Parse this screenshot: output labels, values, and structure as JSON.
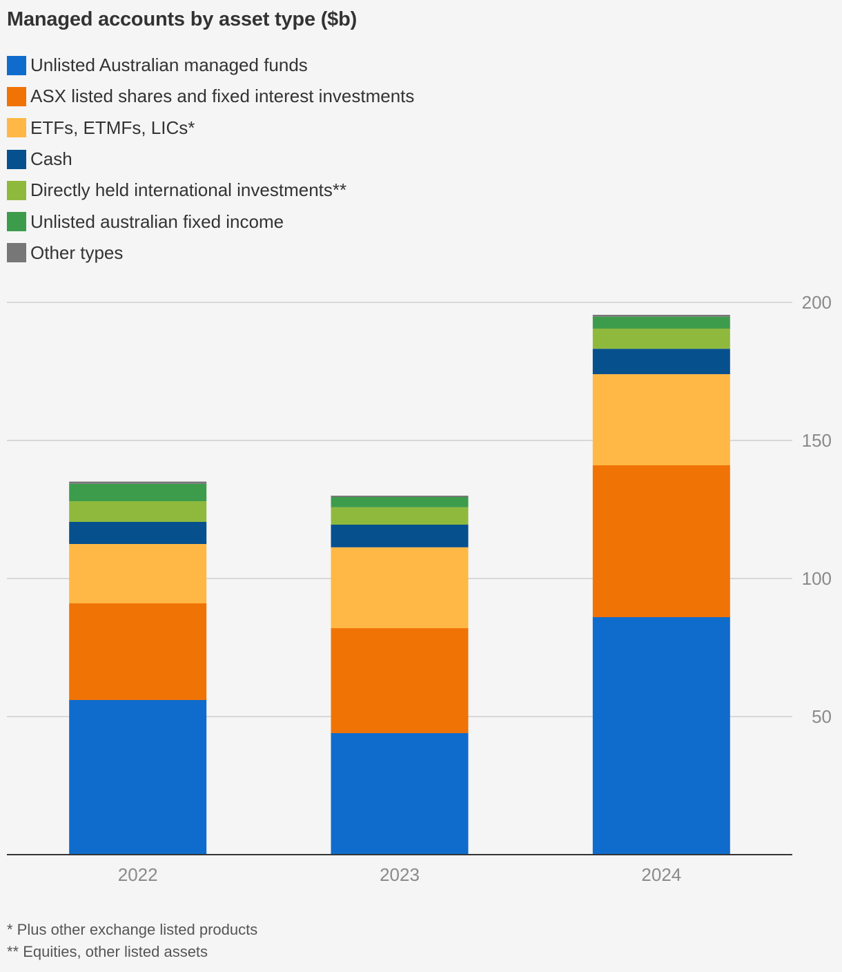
{
  "chart_data": {
    "type": "bar",
    "stacked": true,
    "title": "Managed accounts by asset type ($b)",
    "categories": [
      "2022",
      "2023",
      "2024"
    ],
    "series": [
      {
        "name": "Unlisted Australian managed funds",
        "color": "#106ccc",
        "values": [
          56,
          44,
          86
        ]
      },
      {
        "name": "ASX listed shares and fixed interest investments",
        "color": "#f07306",
        "values": [
          35,
          38,
          55
        ]
      },
      {
        "name": "ETFs, ETMFs, LICs*",
        "color": "#ffb845",
        "values": [
          21.5,
          29.3,
          33
        ]
      },
      {
        "name": "Cash",
        "color": "#06508e",
        "values": [
          8,
          8.2,
          9.2
        ]
      },
      {
        "name": "Directly held international investments**",
        "color": "#8fb93d",
        "values": [
          7.5,
          6.3,
          7.3
        ]
      },
      {
        "name": "Unlisted australian fixed income",
        "color": "#3d9c4c",
        "values": [
          6.3,
          3.7,
          4.3
        ]
      },
      {
        "name": "Other types",
        "color": "#777777",
        "values": [
          0.8,
          0.5,
          0.7
        ]
      }
    ],
    "yticks": [
      50,
      100,
      150,
      200
    ],
    "ylim": [
      0,
      200
    ],
    "grid": true,
    "legend": "top-left"
  },
  "footnotes": [
    "* Plus other exchange listed products",
    "** Equities, other listed assets"
  ]
}
